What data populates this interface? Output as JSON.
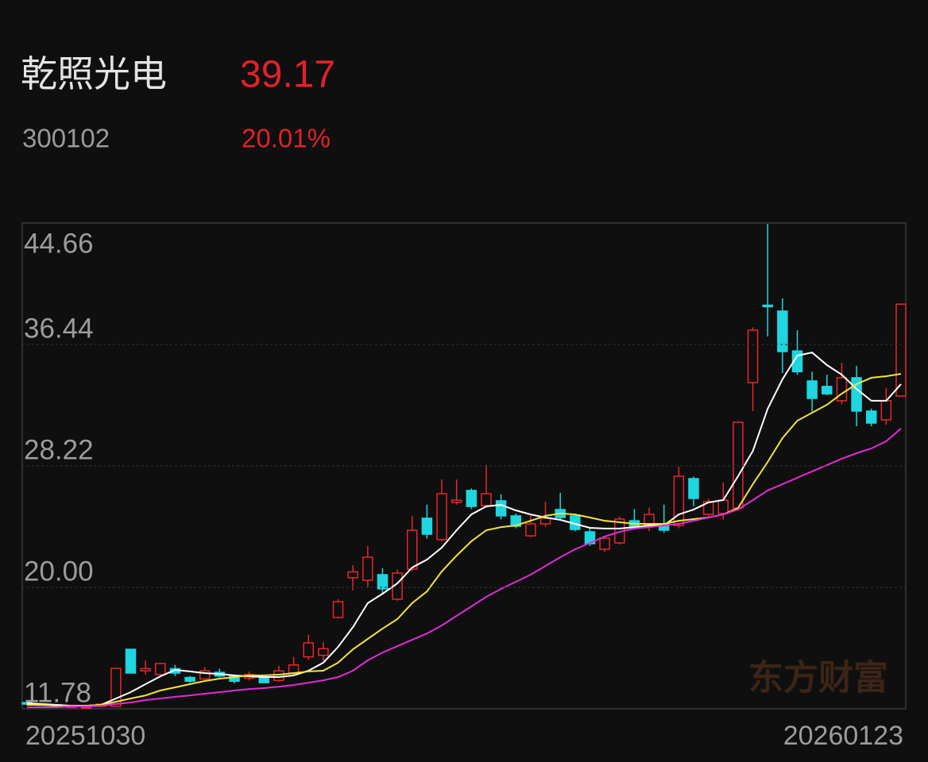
{
  "header": {
    "name": "乾照光电",
    "price": "39.17",
    "code": "300102",
    "change": "20.01%"
  },
  "watermark": "东方财富",
  "chart_data": {
    "type": "candlestick",
    "categories": [
      "20251030",
      null,
      null,
      null,
      null,
      null,
      null,
      null,
      null,
      null,
      null,
      null,
      null,
      null,
      null,
      null,
      null,
      null,
      null,
      null,
      null,
      null,
      null,
      null,
      null,
      null,
      null,
      null,
      null,
      null,
      null,
      null,
      null,
      null,
      null,
      null,
      null,
      null,
      null,
      null,
      null,
      null,
      null,
      null,
      null,
      null,
      null,
      null,
      null,
      null,
      null,
      null,
      null,
      null,
      null,
      null,
      null,
      null,
      null,
      "20260123"
    ],
    "open": [
      12.2,
      12.1,
      12.05,
      11.9,
      11.85,
      11.95,
      11.94,
      15.81,
      14.35,
      14.1,
      14.5,
      13.9,
      13.8,
      14.25,
      14.0,
      13.85,
      13.95,
      13.7,
      14.2,
      15.3,
      15.4,
      17.96,
      20.65,
      20.48,
      20.86,
      19.2,
      21.24,
      24.68,
      23.23,
      25.75,
      26.56,
      25.53,
      25.86,
      24.84,
      23.49,
      24.3,
      25.27,
      24.84,
      23.76,
      22.58,
      23.01,
      24.51,
      24.19,
      24.3,
      24.19,
      27.36,
      24.94,
      25.0,
      25.37,
      33.86,
      39.1,
      38.7,
      36.0,
      33.97,
      33.6,
      32.63,
      34.19,
      31.93,
      31.34,
      32.95
    ],
    "high": [
      12.3,
      12.15,
      12.1,
      12.0,
      11.95,
      12.15,
      14.52,
      15.81,
      15.05,
      14.9,
      14.75,
      14.0,
      14.6,
      14.5,
      14.1,
      14.3,
      14.0,
      14.7,
      15.3,
      16.8,
      16.3,
      19.2,
      21.5,
      22.8,
      21.3,
      21.2,
      24.84,
      25.6,
      27.31,
      27.3,
      26.7,
      28.28,
      26.3,
      25.0,
      24.9,
      25.8,
      26.4,
      25.0,
      24.0,
      23.5,
      24.8,
      25.3,
      25.4,
      25.6,
      28.17,
      27.5,
      26.0,
      27.1,
      31.2,
      37.6,
      44.6,
      39.56,
      37.4,
      34.6,
      34.4,
      35.2,
      35.0,
      32.1,
      33.5,
      39.17
    ],
    "low": [
      12.0,
      12.0,
      11.95,
      11.85,
      11.8,
      11.9,
      11.9,
      14.2,
      14.1,
      14.0,
      14.0,
      13.55,
      13.7,
      13.9,
      13.5,
      13.7,
      13.5,
      13.6,
      14.1,
      15.1,
      15.0,
      17.9,
      19.8,
      20.0,
      19.6,
      19.1,
      21.1,
      23.3,
      23.1,
      25.6,
      25.3,
      25.4,
      24.6,
      24.0,
      23.4,
      24.1,
      24.5,
      23.8,
      22.8,
      22.4,
      22.9,
      23.9,
      23.8,
      23.7,
      24.0,
      25.5,
      24.8,
      24.6,
      25.2,
      31.93,
      36.98,
      34.51,
      34.4,
      31.9,
      33.0,
      32.4,
      30.9,
      30.9,
      31.0,
      32.9
    ],
    "close": [
      12.1,
      12.05,
      12.0,
      11.95,
      11.9,
      12.1,
      14.52,
      14.2,
      14.5,
      14.85,
      14.2,
      13.65,
      14.35,
      14.0,
      13.65,
      14.1,
      13.55,
      14.35,
      14.75,
      16.24,
      15.85,
      19.03,
      21.05,
      22.04,
      19.9,
      20.97,
      23.87,
      23.6,
      26.34,
      25.9,
      25.48,
      26.34,
      24.84,
      24.14,
      24.3,
      24.68,
      24.73,
      23.92,
      22.96,
      23.33,
      24.62,
      24.14,
      24.94,
      23.87,
      27.52,
      26.02,
      25.8,
      25.9,
      31.18,
      37.41,
      39.0,
      35.96,
      34.6,
      32.79,
      33.1,
      34.19,
      31.93,
      31.12,
      32.64,
      39.17
    ],
    "up_color": "#e8262c",
    "down_color": "#1ed6e0",
    "lines": [
      {
        "color": "#ffffff",
        "values": [
          12.16,
          12.1,
          12.05,
          11.99,
          11.99,
          12.05,
          12.48,
          12.91,
          13.45,
          13.98,
          14.41,
          14.31,
          14.2,
          14.14,
          14.04,
          13.98,
          13.93,
          13.93,
          14.04,
          14.36,
          14.9,
          15.97,
          17.31,
          18.93,
          19.57,
          20.27,
          21.34,
          21.88,
          22.69,
          23.87,
          24.94,
          25.48,
          25.59,
          25.21,
          24.94,
          24.73,
          24.57,
          24.3,
          24.03,
          23.98,
          23.98,
          24.08,
          24.19,
          24.19,
          24.94,
          25.27,
          25.75,
          25.91,
          27.52,
          29.24,
          32.09,
          34.08,
          35.69,
          35.9,
          35.05,
          34.4,
          33.43,
          32.63,
          32.63,
          33.76
        ]
      },
      {
        "color": "#f2e33a",
        "values": [
          12.05,
          12.05,
          11.99,
          11.99,
          11.99,
          12.05,
          12.26,
          12.48,
          12.69,
          13.02,
          13.23,
          13.45,
          13.66,
          13.82,
          13.93,
          14.04,
          14.04,
          14.09,
          14.2,
          14.31,
          14.36,
          14.9,
          15.81,
          16.51,
          17.21,
          17.85,
          18.93,
          19.73,
          21.08,
          22.15,
          23.12,
          23.87,
          24.08,
          24.19,
          24.51,
          24.84,
          25.0,
          24.94,
          24.73,
          24.51,
          24.41,
          24.3,
          24.3,
          24.3,
          24.51,
          24.62,
          24.73,
          24.94,
          25.37,
          26.99,
          28.49,
          30.1,
          31.28,
          31.82,
          32.36,
          33.11,
          33.76,
          34.19,
          34.29,
          34.45
        ]
      },
      {
        "color": "#e22ad8",
        "values": [
          11.89,
          11.89,
          11.89,
          11.94,
          11.94,
          11.99,
          12.1,
          12.21,
          12.37,
          12.48,
          12.59,
          12.69,
          12.8,
          12.91,
          13.02,
          13.12,
          13.18,
          13.28,
          13.39,
          13.55,
          13.71,
          13.93,
          14.36,
          15.06,
          15.59,
          16.02,
          16.45,
          16.88,
          17.42,
          18.07,
          18.71,
          19.36,
          19.89,
          20.38,
          20.86,
          21.45,
          22.04,
          22.58,
          23.01,
          23.44,
          23.76,
          23.98,
          24.08,
          24.19,
          24.3,
          24.51,
          24.73,
          24.94,
          25.27,
          25.91,
          26.56,
          26.99,
          27.42,
          27.85,
          28.28,
          28.71,
          29.08,
          29.4,
          29.89,
          30.75
        ]
      }
    ],
    "ylim": [
      11.78,
      44.66
    ],
    "yticks": [
      44.66,
      36.44,
      28.22,
      {
        "value": 20,
        "label": "20.00"
      },
      11.78
    ],
    "grid": true
  }
}
